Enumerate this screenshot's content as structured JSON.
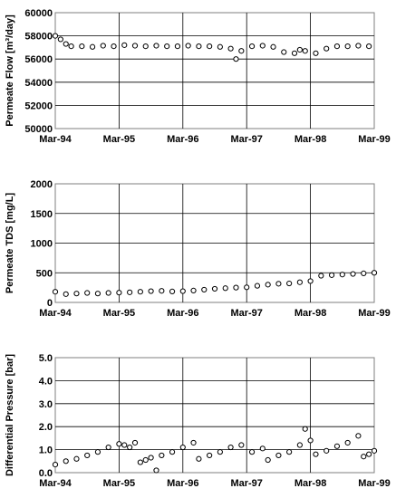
{
  "chart_data": [
    {
      "type": "scatter",
      "name": "permeate-flow",
      "title": "",
      "xlabel": "",
      "ylabel": "Permeate Flow [m³/day]",
      "x_ticks": [
        "Mar-94",
        "Mar-95",
        "Mar-96",
        "Mar-97",
        "Mar-98",
        "Mar-99"
      ],
      "xlim": [
        "1994-03",
        "1999-03"
      ],
      "ylim": [
        50000,
        60000
      ],
      "y_ticks": [
        "50000",
        "52000",
        "54000",
        "56000",
        "58000",
        "60000"
      ],
      "grid": true,
      "marker": "open-circle",
      "series": [
        {
          "values": [
            [
              "1994-03",
              58000
            ],
            [
              "1994-04",
              57700
            ],
            [
              "1994-05",
              57300
            ],
            [
              "1994-06",
              57100
            ],
            [
              "1994-08",
              57100
            ],
            [
              "1994-10",
              57050
            ],
            [
              "1994-12",
              57150
            ],
            [
              "1995-02",
              57100
            ],
            [
              "1995-04",
              57200
            ],
            [
              "1995-06",
              57150
            ],
            [
              "1995-08",
              57100
            ],
            [
              "1995-10",
              57150
            ],
            [
              "1995-12",
              57100
            ],
            [
              "1996-02",
              57100
            ],
            [
              "1996-04",
              57150
            ],
            [
              "1996-06",
              57100
            ],
            [
              "1996-08",
              57100
            ],
            [
              "1996-10",
              57050
            ],
            [
              "1996-12",
              56900
            ],
            [
              "1997-01",
              56000
            ],
            [
              "1997-02",
              56700
            ],
            [
              "1997-04",
              57100
            ],
            [
              "1997-06",
              57150
            ],
            [
              "1997-08",
              57050
            ],
            [
              "1997-10",
              56600
            ],
            [
              "1997-12",
              56500
            ],
            [
              "1998-01",
              56800
            ],
            [
              "1998-02",
              56700
            ],
            [
              "1998-04",
              56500
            ],
            [
              "1998-06",
              56900
            ],
            [
              "1998-08",
              57100
            ],
            [
              "1998-10",
              57100
            ],
            [
              "1998-12",
              57150
            ],
            [
              "1999-02",
              57100
            ]
          ]
        }
      ]
    },
    {
      "type": "scatter",
      "name": "permeate-tds",
      "title": "",
      "xlabel": "",
      "ylabel": "Permeate TDS [mg/L]",
      "x_ticks": [
        "Mar-94",
        "Mar-95",
        "Mar-96",
        "Mar-97",
        "Mar-98",
        "Mar-99"
      ],
      "xlim": [
        "1994-03",
        "1999-03"
      ],
      "ylim": [
        0,
        2000
      ],
      "y_ticks": [
        "0",
        "500",
        "1000",
        "1500",
        "2000"
      ],
      "grid": true,
      "marker": "open-circle",
      "series": [
        {
          "values": [
            [
              "1994-03",
              180
            ],
            [
              "1994-05",
              140
            ],
            [
              "1994-07",
              150
            ],
            [
              "1994-09",
              160
            ],
            [
              "1994-11",
              150
            ],
            [
              "1995-01",
              160
            ],
            [
              "1995-03",
              165
            ],
            [
              "1995-05",
              170
            ],
            [
              "1995-07",
              180
            ],
            [
              "1995-09",
              190
            ],
            [
              "1995-11",
              195
            ],
            [
              "1996-01",
              185
            ],
            [
              "1996-03",
              190
            ],
            [
              "1996-05",
              200
            ],
            [
              "1996-07",
              215
            ],
            [
              "1996-09",
              230
            ],
            [
              "1996-11",
              240
            ],
            [
              "1997-01",
              250
            ],
            [
              "1997-03",
              255
            ],
            [
              "1997-05",
              280
            ],
            [
              "1997-07",
              300
            ],
            [
              "1997-09",
              315
            ],
            [
              "1997-11",
              320
            ],
            [
              "1998-01",
              340
            ],
            [
              "1998-03",
              360
            ],
            [
              "1998-05",
              450
            ],
            [
              "1998-07",
              460
            ],
            [
              "1998-09",
              470
            ],
            [
              "1998-11",
              480
            ],
            [
              "1999-01",
              490
            ],
            [
              "1999-03",
              500
            ]
          ]
        }
      ]
    },
    {
      "type": "scatter",
      "name": "differential-pressure",
      "title": "",
      "xlabel": "",
      "ylabel": "Differential Pressure [bar]",
      "x_ticks": [
        "Mar-94",
        "Mar-95",
        "Mar-96",
        "Mar-97",
        "Mar-98",
        "Mar-99"
      ],
      "xlim": [
        "1994-03",
        "1999-03"
      ],
      "ylim": [
        0,
        5
      ],
      "y_ticks": [
        "0.0",
        "1.0",
        "2.0",
        "3.0",
        "4.0",
        "5.0"
      ],
      "grid": true,
      "marker": "open-circle",
      "series": [
        {
          "values": [
            [
              "1994-03",
              0.35
            ],
            [
              "1994-05",
              0.5
            ],
            [
              "1994-07",
              0.6
            ],
            [
              "1994-09",
              0.75
            ],
            [
              "1994-11",
              0.9
            ],
            [
              "1995-01",
              1.1
            ],
            [
              "1995-03",
              1.25
            ],
            [
              "1995-04",
              1.2
            ],
            [
              "1995-05",
              1.1
            ],
            [
              "1995-06",
              1.3
            ],
            [
              "1995-07",
              0.45
            ],
            [
              "1995-08",
              0.55
            ],
            [
              "1995-09",
              0.65
            ],
            [
              "1995-10",
              0.1
            ],
            [
              "1995-11",
              0.75
            ],
            [
              "1996-01",
              0.9
            ],
            [
              "1996-03",
              1.1
            ],
            [
              "1996-05",
              1.3
            ],
            [
              "1996-06",
              0.6
            ],
            [
              "1996-08",
              0.75
            ],
            [
              "1996-10",
              0.9
            ],
            [
              "1996-12",
              1.1
            ],
            [
              "1997-02",
              1.2
            ],
            [
              "1997-04",
              0.9
            ],
            [
              "1997-06",
              1.05
            ],
            [
              "1997-07",
              0.55
            ],
            [
              "1997-09",
              0.75
            ],
            [
              "1997-11",
              0.9
            ],
            [
              "1998-01",
              1.2
            ],
            [
              "1998-02",
              1.9
            ],
            [
              "1998-03",
              1.4
            ],
            [
              "1998-04",
              0.8
            ],
            [
              "1998-06",
              0.95
            ],
            [
              "1998-08",
              1.15
            ],
            [
              "1998-10",
              1.3
            ],
            [
              "1998-12",
              1.6
            ],
            [
              "1999-01",
              0.7
            ],
            [
              "1999-02",
              0.8
            ],
            [
              "1999-03",
              0.95
            ]
          ]
        }
      ]
    }
  ]
}
